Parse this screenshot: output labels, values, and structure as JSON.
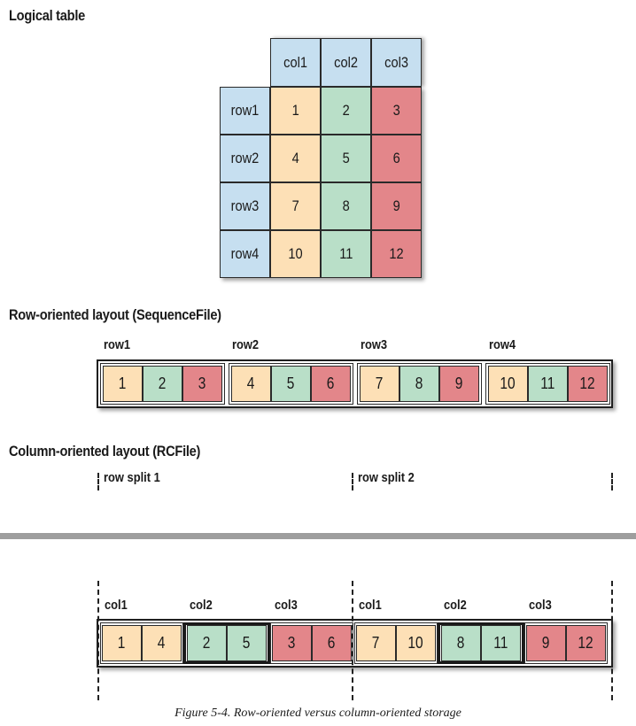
{
  "logical_table": {
    "heading": "Logical table",
    "columns": [
      "col1",
      "col2",
      "col3"
    ],
    "rows": [
      {
        "label": "row1",
        "values": [
          "1",
          "2",
          "3"
        ]
      },
      {
        "label": "row2",
        "values": [
          "4",
          "5",
          "6"
        ]
      },
      {
        "label": "row3",
        "values": [
          "7",
          "8",
          "9"
        ]
      },
      {
        "label": "row4",
        "values": [
          "10",
          "11",
          "12"
        ]
      }
    ]
  },
  "row_layout": {
    "heading": "Row-oriented layout (SequenceFile)",
    "groups": [
      {
        "label": "row1",
        "values": [
          "1",
          "2",
          "3"
        ]
      },
      {
        "label": "row2",
        "values": [
          "4",
          "5",
          "6"
        ]
      },
      {
        "label": "row3",
        "values": [
          "7",
          "8",
          "9"
        ]
      },
      {
        "label": "row4",
        "values": [
          "10",
          "11",
          "12"
        ]
      }
    ]
  },
  "column_layout": {
    "heading": "Column-oriented layout (RCFile)",
    "splits": [
      {
        "label": "row split 1",
        "groups": [
          {
            "label": "col1",
            "values": [
              "1",
              "4"
            ]
          },
          {
            "label": "col2",
            "values": [
              "2",
              "5"
            ]
          },
          {
            "label": "col3",
            "values": [
              "3",
              "6"
            ]
          }
        ]
      },
      {
        "label": "row split 2",
        "groups": [
          {
            "label": "col1",
            "values": [
              "7",
              "10"
            ]
          },
          {
            "label": "col2",
            "values": [
              "8",
              "11"
            ]
          },
          {
            "label": "col3",
            "values": [
              "9",
              "12"
            ]
          }
        ]
      }
    ]
  },
  "colors": {
    "header": "#c6dff0",
    "col1": "#fde0b6",
    "col2": "#b9dfc8",
    "col3": "#e3868a"
  },
  "caption": "Figure 5-4. Row-oriented versus column-oriented storage"
}
